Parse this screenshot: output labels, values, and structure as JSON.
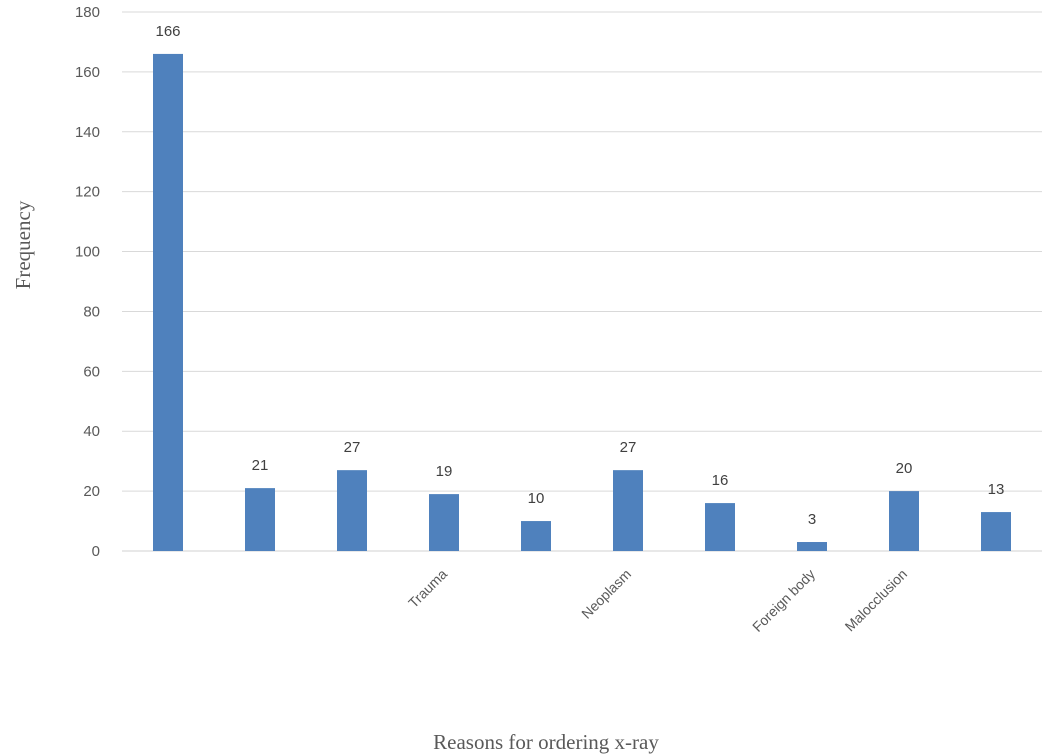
{
  "chart_data": {
    "type": "bar",
    "title": "",
    "xlabel": "Reasons for ordering x-ray",
    "ylabel": "Frequency",
    "ylim": [
      0,
      180
    ],
    "yticks": [
      0,
      20,
      40,
      60,
      80,
      100,
      120,
      140,
      160,
      180
    ],
    "grid": true,
    "legend": "none",
    "bar_color": "#4f81bd",
    "categories": [
      "",
      "",
      "",
      "Trauma",
      "",
      "Neoplasm",
      "",
      "Foreign body",
      "Malocclusion",
      ""
    ],
    "values": [
      166,
      21,
      27,
      19,
      10,
      27,
      16,
      3,
      20,
      13
    ],
    "data_labels": [
      "166",
      "21",
      "27",
      "19",
      "10",
      "27",
      "16",
      "3",
      "20",
      "13"
    ]
  }
}
